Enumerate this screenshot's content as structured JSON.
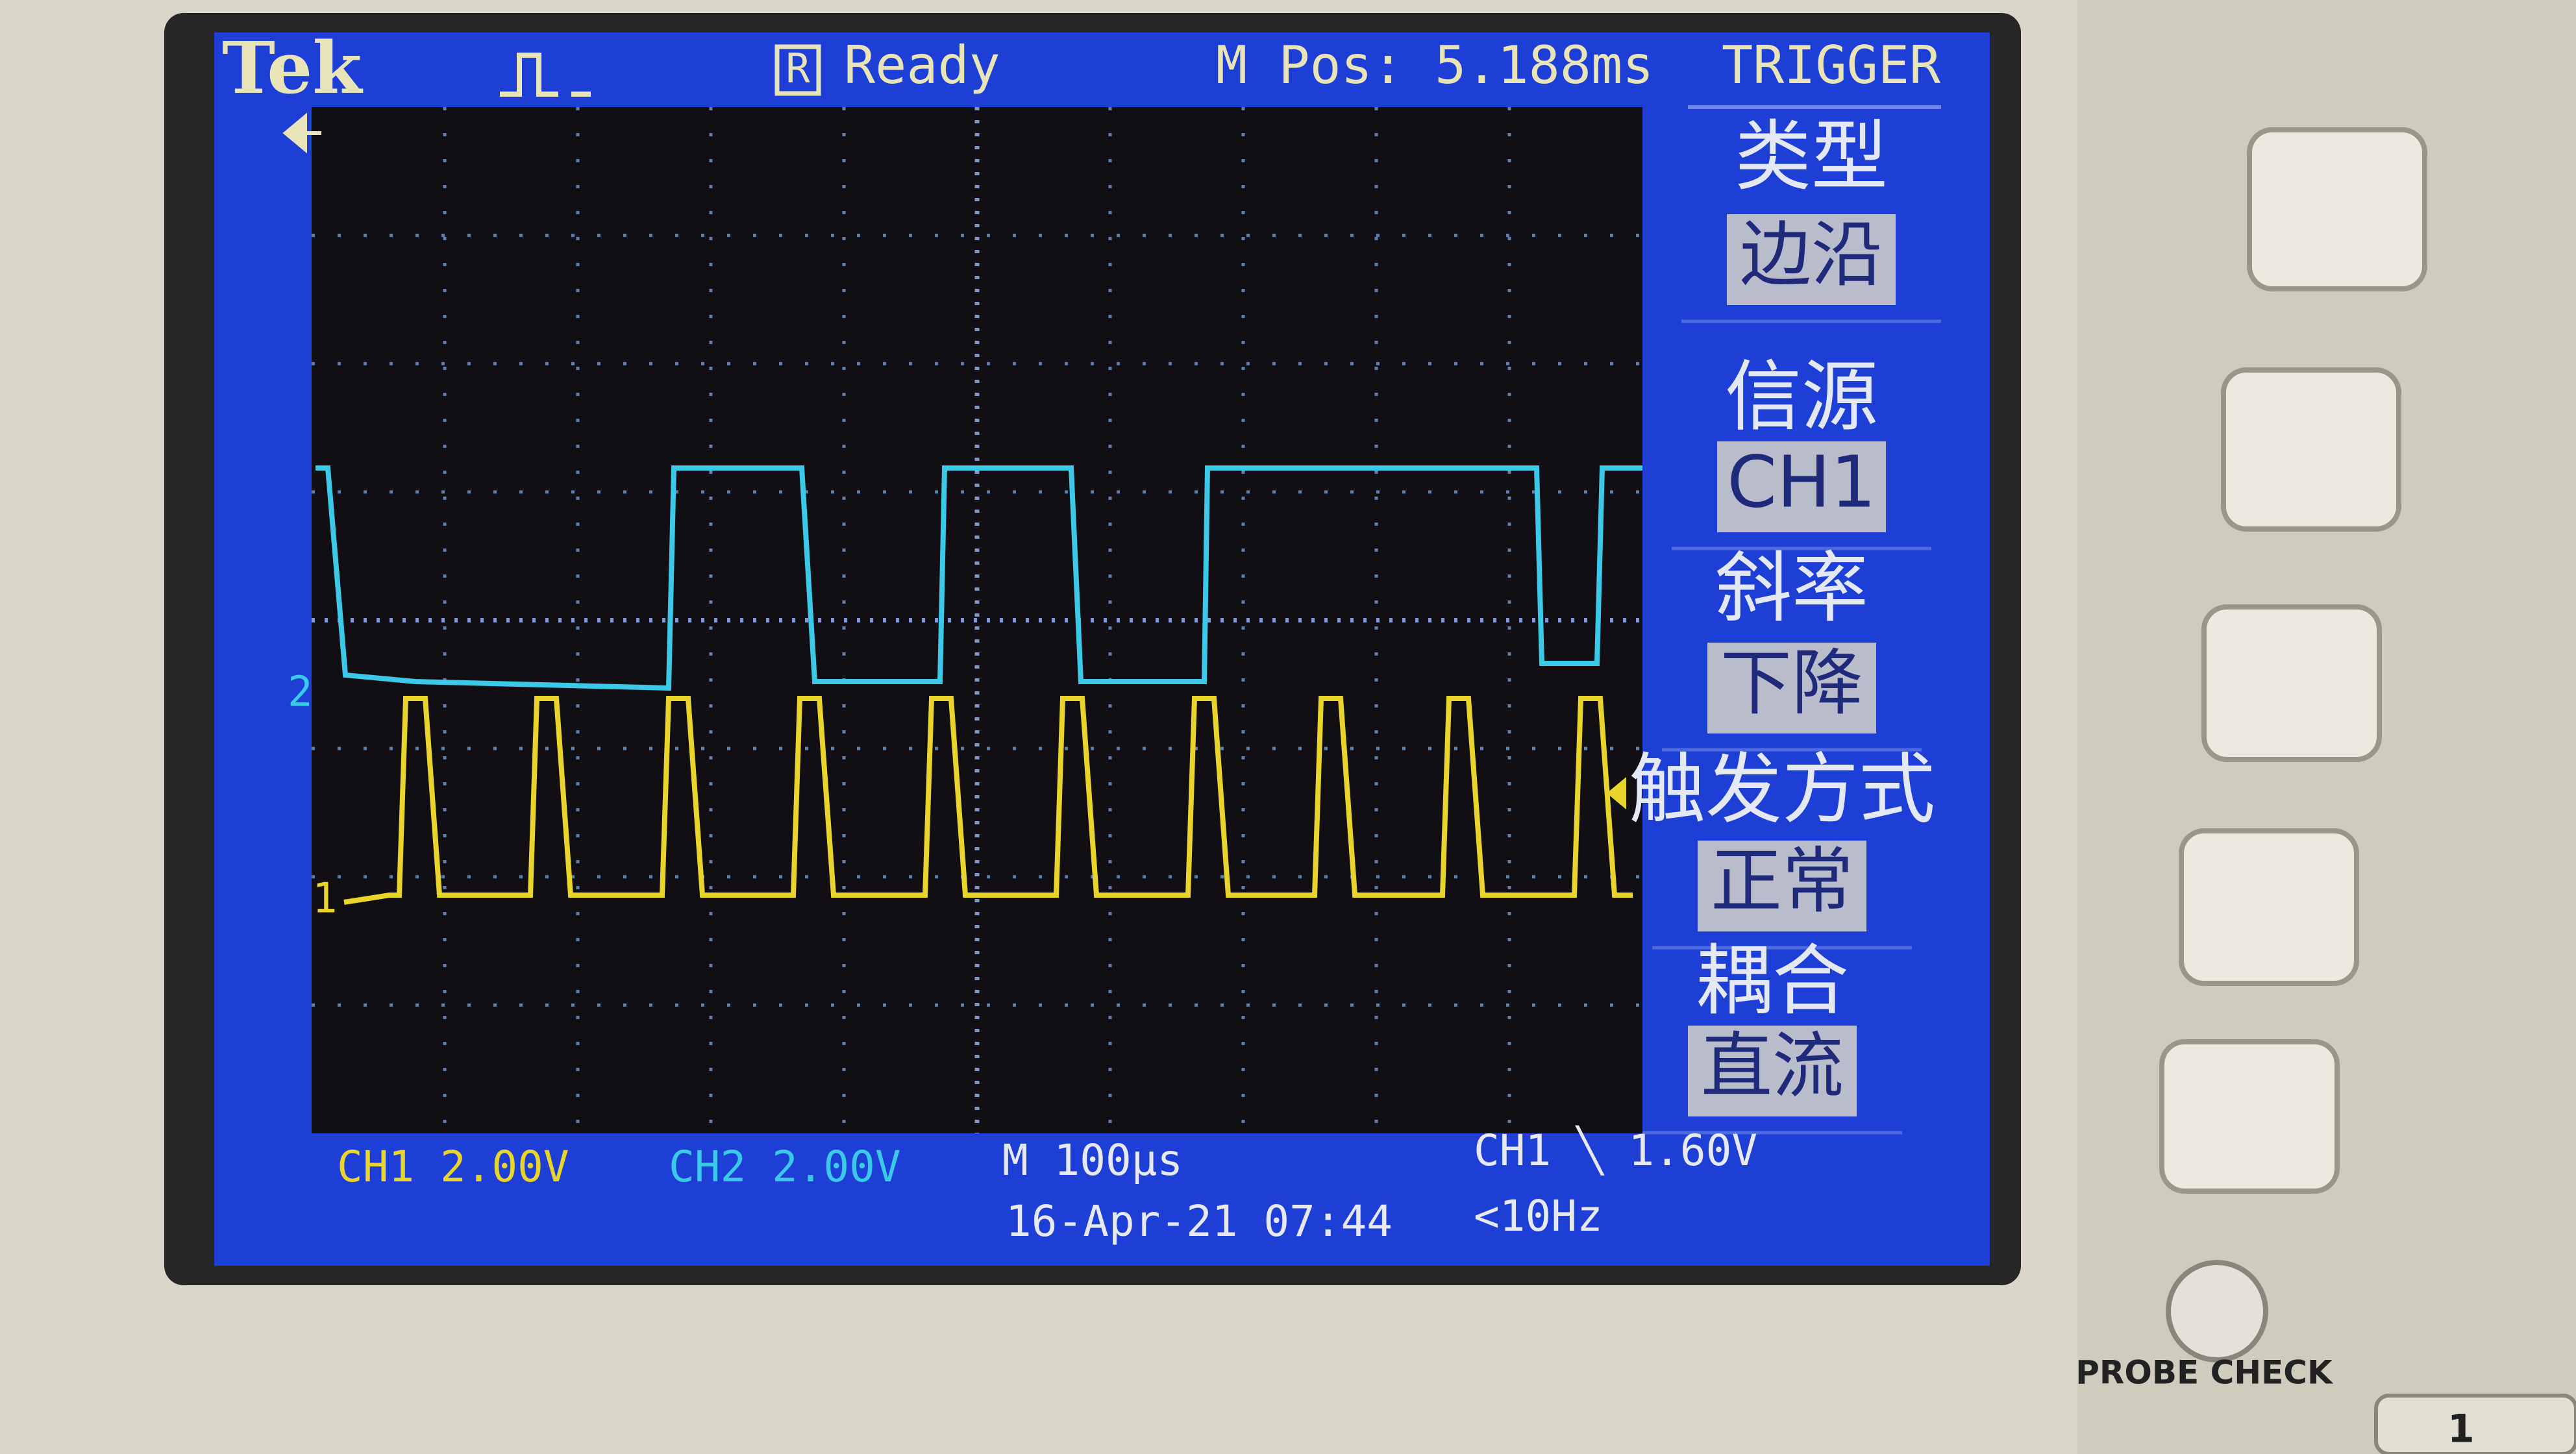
{
  "header": {
    "brand": "Tek",
    "status_icon": "R",
    "status": "Ready",
    "position": "M Pos: 5.188ms",
    "menu_title": "TRIGGER"
  },
  "menu": [
    {
      "label": "类型",
      "value": "边沿"
    },
    {
      "label": "信源",
      "value": "CH1"
    },
    {
      "label": "斜率",
      "value": "下降"
    },
    {
      "label": "触发方式",
      "value": "正常"
    },
    {
      "label": "耦合",
      "value": "直流"
    }
  ],
  "channel_markers": [
    "2",
    "1"
  ],
  "footer": {
    "ch1": "CH1 2.00V",
    "ch2": "CH2 2.00V",
    "timebase": "M 100µs",
    "trigger": "CH1 ╲ 1.60V",
    "date": "16-Apr-21 07:44",
    "frequency": "<10Hz"
  },
  "bezel": {
    "probe_check": "PROBE CHECK",
    "channel_button": "1"
  }
}
